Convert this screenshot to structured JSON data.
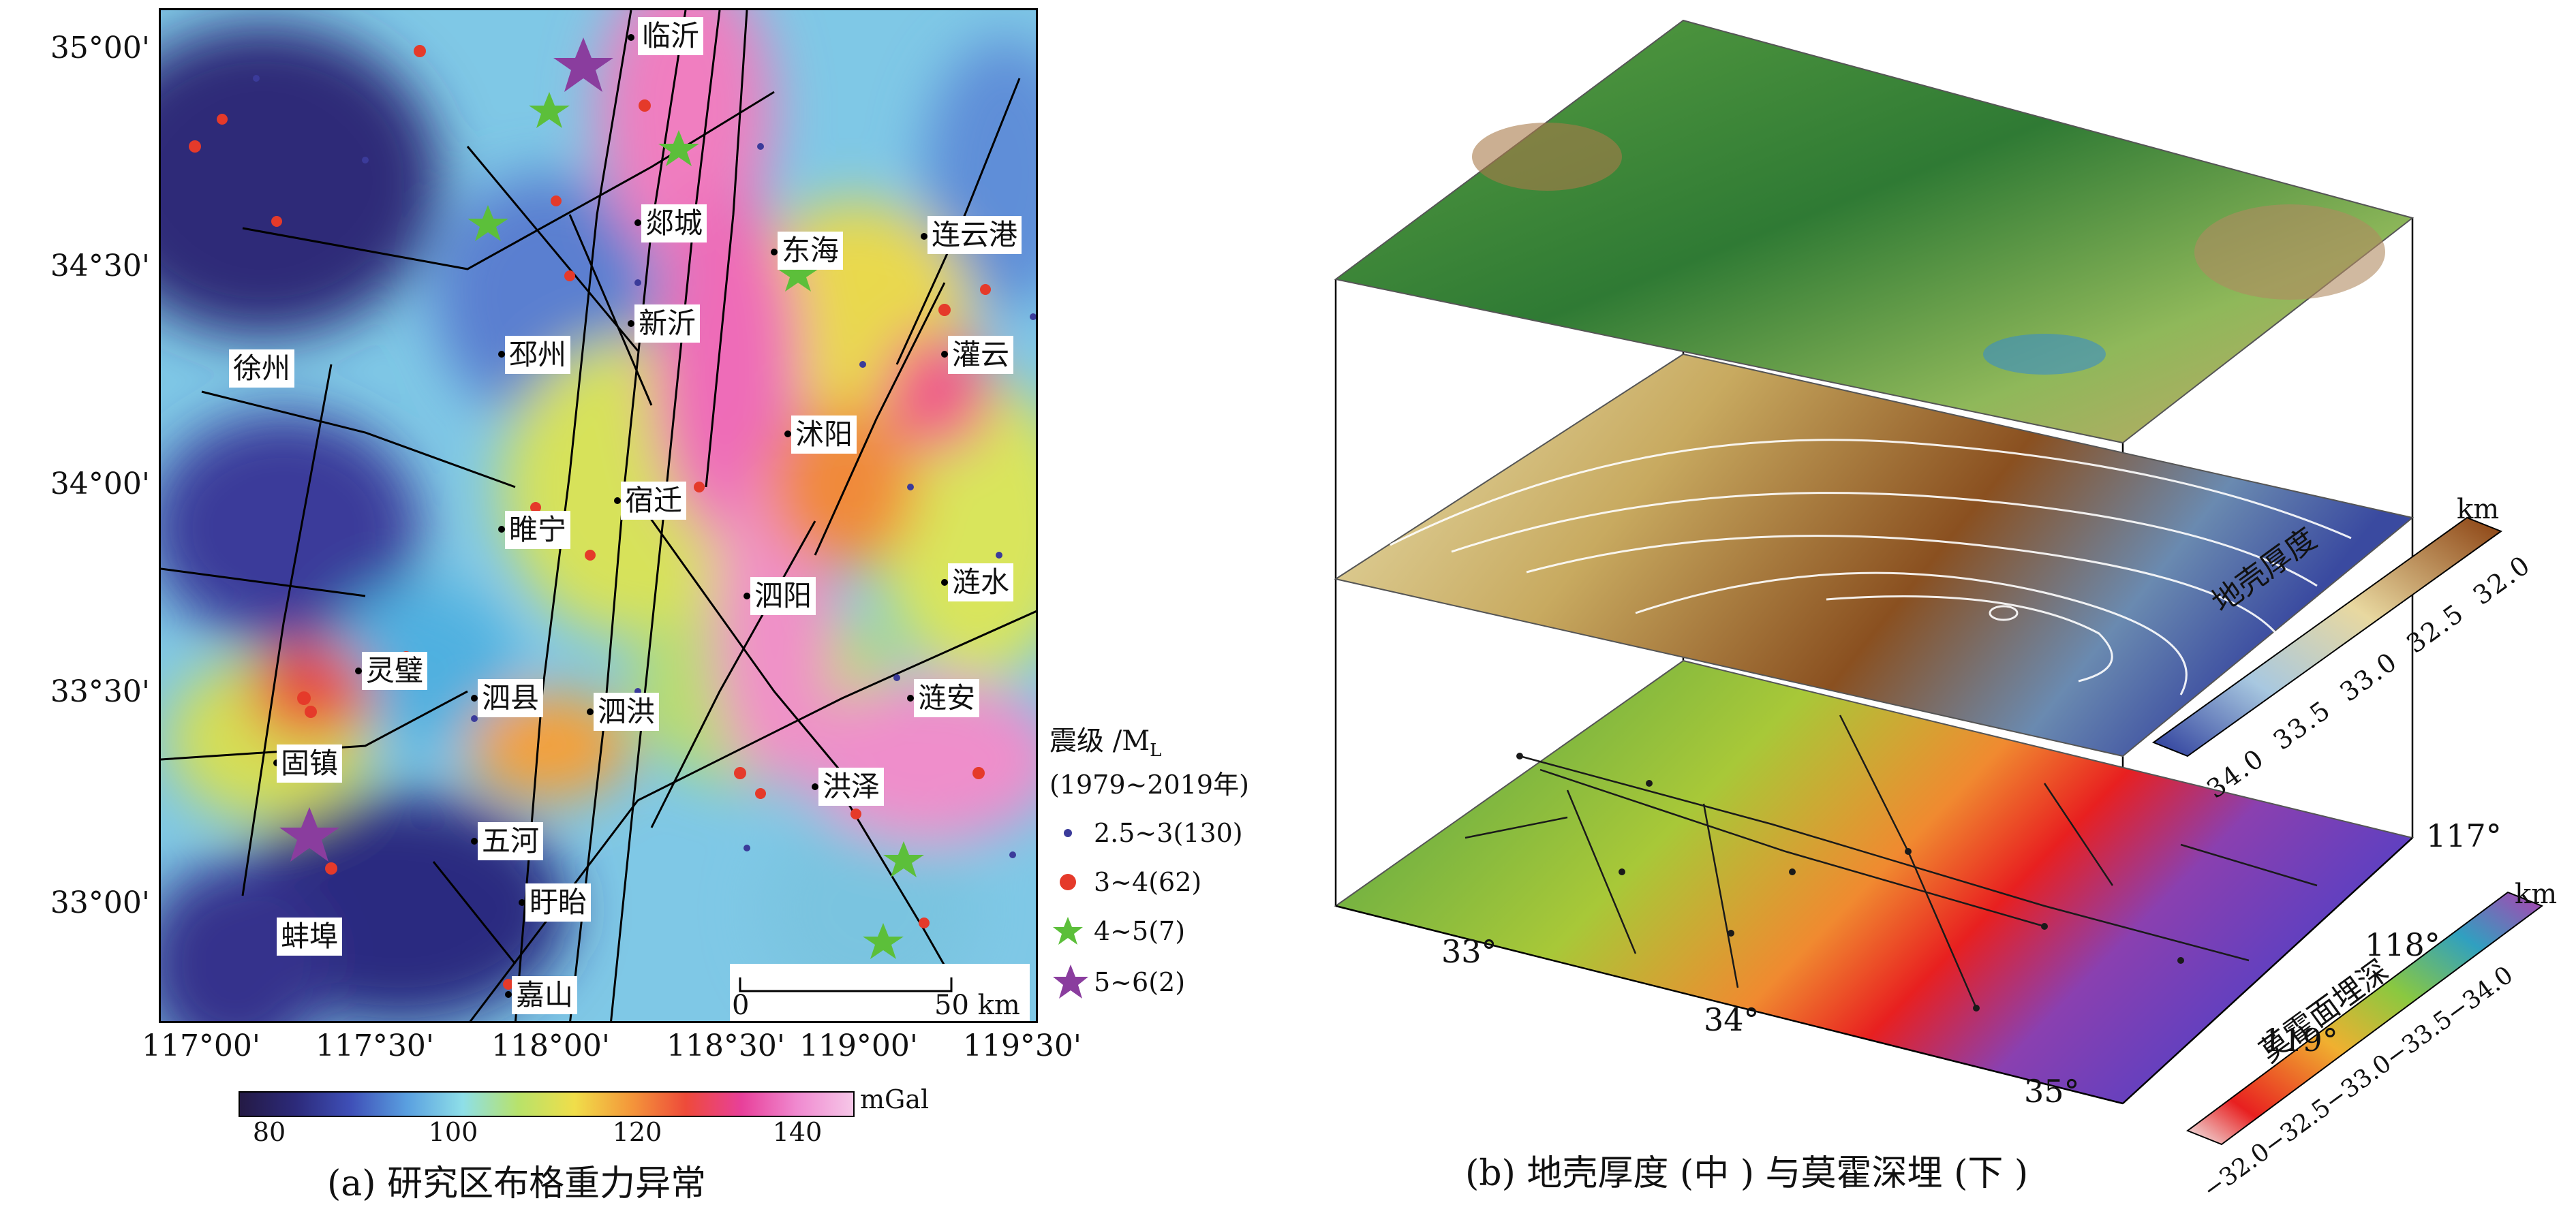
{
  "panel_a": {
    "caption": "(a) 研究区布格重力异常",
    "y_ticks": [
      "35°00'",
      "34°30'",
      "34°00'",
      "33°30'",
      "33°00'"
    ],
    "x_ticks": [
      "117°00'",
      "117°30'",
      "118°00'",
      "118°30'",
      "119°00'",
      "119°30'"
    ],
    "cities": [
      "临沂",
      "郯城",
      "东海",
      "连云港",
      "新沂",
      "邳州",
      "徐州",
      "灌云",
      "沭阳",
      "宿迁",
      "睢宁",
      "泗阳",
      "涟水",
      "灵璧",
      "泗县",
      "泗洪",
      "涟安",
      "固镇",
      "洪泽",
      "五河",
      "盱眙",
      "蚌埠",
      "嘉山"
    ],
    "scalebar": {
      "start": "0",
      "end": "50 km"
    },
    "colorbar": {
      "unit": "mGal",
      "ticks": [
        "80",
        "100",
        "120",
        "140"
      ]
    },
    "legend": {
      "title_line1": "震级 /M",
      "title_sub": "L",
      "title_line2": "(1979~2019年)",
      "items": [
        {
          "label": "2.5~3(130)",
          "color": "#3b3b9a"
        },
        {
          "label": "3~4(62)",
          "color": "#e53a2a"
        },
        {
          "label": "4~5(7)",
          "color": "#5cbf3a"
        },
        {
          "label": "5~6(2)",
          "color": "#8a3d9e"
        }
      ]
    }
  },
  "panel_b": {
    "caption": "(b) 地壳厚度 (中 ) 与莫霍深埋 (下 )",
    "lat_ticks": [
      "33°",
      "34°",
      "35°"
    ],
    "lon_ticks": [
      "117°",
      "118°",
      "119°"
    ],
    "cb1": {
      "label": "地壳厚度",
      "unit": "km",
      "ticks": [
        "34.0",
        "33.5",
        "33.0",
        "32.5",
        "32.0"
      ]
    },
    "cb2": {
      "label": "莫霍面埋深",
      "unit": "km",
      "ticks": [
        "−32.0",
        "−32.5",
        "−33.0",
        "−33.5",
        "−34.0"
      ]
    }
  }
}
